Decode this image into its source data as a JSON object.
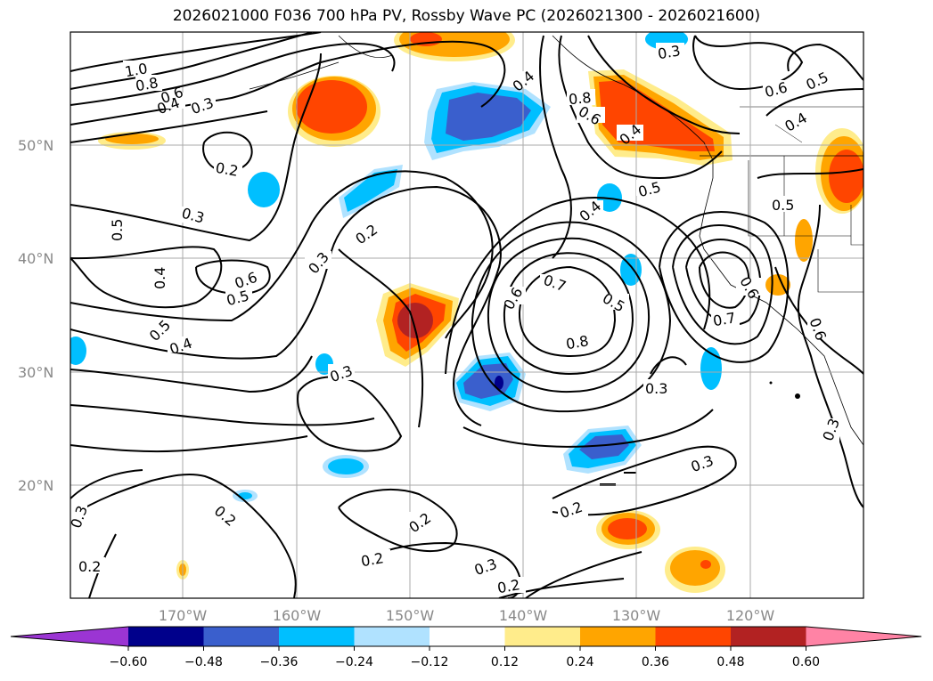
{
  "title": "2026021000 F036 700 hPa PV, Rossby Wave PC (2026021300 - 2026021600)",
  "map": {
    "lat_labels": [
      "50°N",
      "40°N",
      "30°N",
      "20°N"
    ],
    "lon_labels": [
      "170°W",
      "160°W",
      "150°W",
      "140°W",
      "130°W",
      "120°W"
    ],
    "contour_labels": [
      "1.0",
      "0.8",
      "0.6",
      "0.4",
      "0.3",
      "0.2",
      "0.3",
      "0.5",
      "0.6",
      "0.5",
      "0.4",
      "0.5",
      "0.4",
      "0.3",
      "0.2",
      "0.3",
      "0.4",
      "0.6",
      "0.7",
      "0.8",
      "0.5",
      "0.6",
      "0.7",
      "0.6",
      "0.2",
      "0.3",
      "0.3",
      "0.4",
      "0.5",
      "0.5",
      "0.6",
      "0.5",
      "0.4",
      "0.8",
      "0.6",
      "0.4",
      "0.3",
      "0.2",
      "0.2",
      "0.2",
      "0.3",
      "0.2",
      "0.3",
      "0.3",
      "0.2",
      "0.3",
      "0.2",
      "0.3",
      "0.3"
    ]
  },
  "colorbar": {
    "ticks": [
      "−0.60",
      "−0.48",
      "−0.36",
      "−0.24",
      "−0.12",
      "0.12",
      "0.24",
      "0.36",
      "0.48",
      "0.60"
    ],
    "colors": [
      "#9b35d3",
      "#00008b",
      "#3a5fcd",
      "#00bfff",
      "#b0e2ff",
      "#ffffff",
      "#ffec8b",
      "#ffa500",
      "#ff4500",
      "#b22222",
      "#ff83a5"
    ]
  }
}
